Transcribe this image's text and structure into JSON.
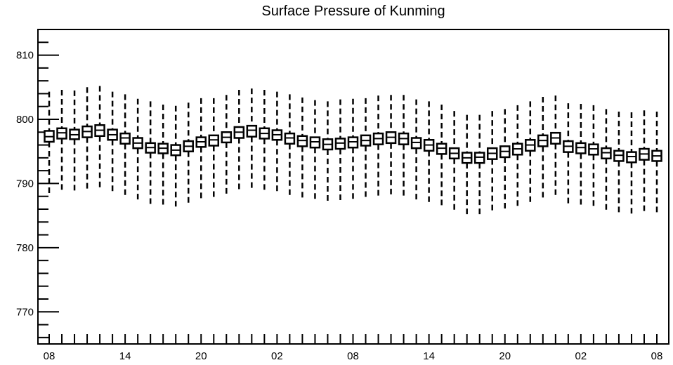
{
  "chart_data": {
    "type": "box",
    "title": "Surface Pressure of Kunming",
    "xlabel": "",
    "ylabel": "",
    "ylim": [
      765,
      814
    ],
    "yticks": [
      770,
      780,
      790,
      800,
      810
    ],
    "x_tick_labels": [
      "08",
      "14",
      "20",
      "02",
      "08",
      "14",
      "20",
      "02",
      "08"
    ],
    "x_tick_positions": [
      0,
      6,
      12,
      18,
      24,
      30,
      36,
      42,
      48
    ],
    "grid": false,
    "series": [
      {
        "medians": [
          797.3,
          797.9,
          797.6,
          798.1,
          798.3,
          797.6,
          797.1,
          796.3,
          795.6,
          795.5,
          795.2,
          795.8,
          796.5,
          796.8,
          797.2,
          798.0,
          798.3,
          797.8,
          797.6,
          797.1,
          796.7,
          796.5,
          796.1,
          796.3,
          796.5,
          796.7,
          797.0,
          797.2,
          797.0,
          796.4,
          796.0,
          795.5,
          794.7,
          794.0,
          794.1,
          794.7,
          795.0,
          795.4,
          796.0,
          796.7,
          797.1,
          795.8,
          795.6,
          795.4,
          794.8,
          794.4,
          794.2,
          794.6,
          794.3
        ],
        "q1": [
          796.5,
          797.0,
          796.9,
          797.2,
          797.4,
          796.8,
          796.2,
          795.5,
          794.8,
          794.7,
          794.4,
          795.0,
          795.7,
          795.9,
          796.4,
          797.1,
          797.3,
          797.0,
          796.8,
          796.2,
          795.8,
          795.6,
          795.3,
          795.4,
          795.6,
          795.9,
          796.1,
          796.3,
          796.1,
          795.5,
          795.1,
          794.6,
          793.9,
          793.2,
          793.2,
          793.8,
          794.1,
          794.5,
          795.1,
          795.8,
          796.2,
          794.9,
          794.7,
          794.5,
          793.9,
          793.5,
          793.3,
          793.7,
          793.5
        ],
        "q3": [
          798.2,
          798.6,
          798.4,
          798.9,
          799.1,
          798.4,
          797.8,
          797.1,
          796.3,
          796.2,
          796.0,
          796.6,
          797.2,
          797.5,
          798.0,
          798.8,
          799.0,
          798.6,
          798.3,
          797.8,
          797.4,
          797.2,
          796.9,
          797.0,
          797.2,
          797.5,
          797.8,
          798.0,
          797.8,
          797.1,
          796.8,
          796.2,
          795.5,
          794.8,
          794.8,
          795.5,
          795.8,
          796.2,
          796.8,
          797.5,
          797.9,
          796.6,
          796.3,
          796.1,
          795.5,
          795.1,
          794.9,
          795.4,
          795.1
        ],
        "whisker_low": [
          788.0,
          788.7,
          788.8,
          789.0,
          789.2,
          788.5,
          788.0,
          787.3,
          786.7,
          786.6,
          786.3,
          786.9,
          787.5,
          787.7,
          788.2,
          788.9,
          789.0,
          788.7,
          788.3,
          787.8,
          787.5,
          787.2,
          787.0,
          787.1,
          787.3,
          787.5,
          787.8,
          788.0,
          787.8,
          787.2,
          786.9,
          786.3,
          785.6,
          785.0,
          784.9,
          785.6,
          785.9,
          786.3,
          786.8,
          787.6,
          788.0,
          786.7,
          786.3,
          786.1,
          785.6,
          785.3,
          785.0,
          785.5,
          785.2
        ],
        "whisker_high": [
          804.3,
          804.6,
          804.5,
          805.0,
          805.2,
          804.3,
          803.9,
          803.2,
          802.8,
          802.3,
          802.1,
          802.6,
          803.3,
          803.3,
          803.8,
          804.6,
          804.8,
          804.6,
          804.3,
          803.9,
          803.4,
          803.0,
          802.8,
          803.1,
          803.2,
          803.3,
          803.7,
          803.8,
          803.8,
          803.1,
          802.8,
          802.3,
          801.3,
          800.7,
          800.7,
          801.3,
          801.6,
          802.2,
          802.8,
          803.5,
          803.7,
          802.5,
          802.4,
          802.2,
          801.6,
          801.2,
          801.1,
          801.4,
          801.2
        ]
      }
    ]
  }
}
